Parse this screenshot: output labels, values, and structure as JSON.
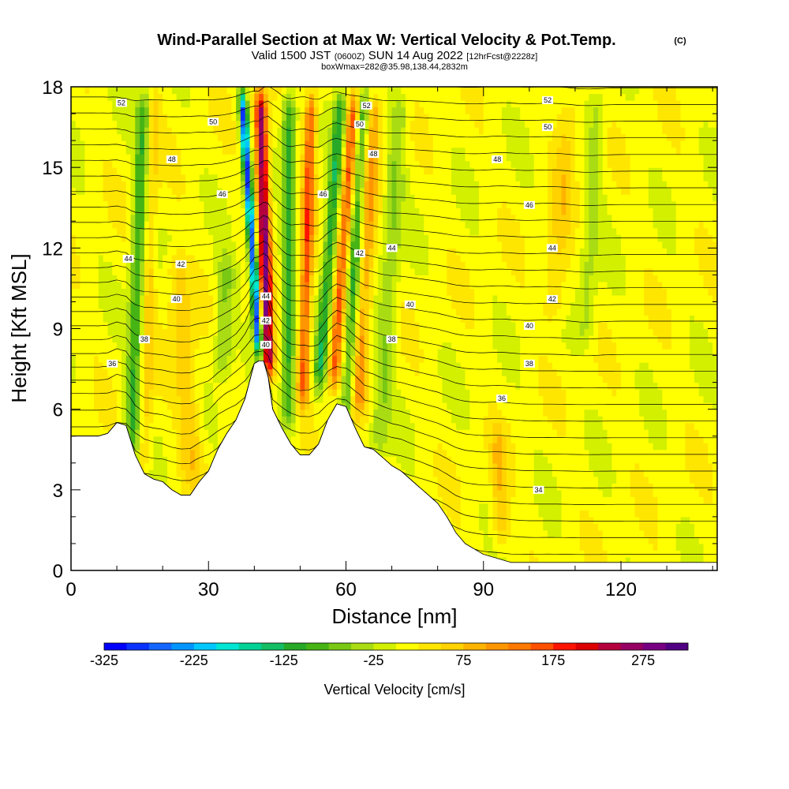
{
  "header": {
    "title": "Wind-Parallel Section at Max W: Vertical Velocity & Pot.Temp.",
    "copyright": "(C)",
    "valid_prefix": "Valid 1500 JST",
    "valid_utc": "(0600Z)",
    "valid_date": "SUN 14 Aug 2022",
    "forecast": "[12hrFcst@2228z]",
    "box_info": "boxWmax=282@35.98,138.44,2832m"
  },
  "chart_data": {
    "type": "heatmap",
    "xlabel": "Distance [nm]",
    "ylabel": "Height [Kft MSL]",
    "xlim": [
      0,
      141
    ],
    "ylim": [
      0,
      18
    ],
    "x_ticks": [
      0,
      30,
      60,
      90,
      120
    ],
    "y_ticks": [
      0,
      3,
      6,
      9,
      12,
      15,
      18
    ],
    "colorbar": {
      "label": "Vertical Velocity [cm/s]",
      "min": -325,
      "max": 325,
      "step": 25,
      "tick_values": [
        -325,
        -225,
        -125,
        -25,
        75,
        175,
        275
      ],
      "tick_labels": [
        "-325",
        "-225",
        "-125",
        "-25",
        "75",
        "175",
        "275"
      ],
      "colors": [
        "#0000ff",
        "#0a32ff",
        "#1466ff",
        "#0096ff",
        "#00c8ff",
        "#00e6d2",
        "#00d296",
        "#14be64",
        "#28aa28",
        "#46b414",
        "#78c814",
        "#aadc14",
        "#d2f000",
        "#ffff00",
        "#ffe600",
        "#ffd200",
        "#ffb400",
        "#ff9600",
        "#ff7800",
        "#ff5000",
        "#ff1400",
        "#dc0000",
        "#b4003c",
        "#960064",
        "#780082",
        "#500082"
      ]
    },
    "terrain_profile": {
      "x": [
        0,
        2,
        4,
        6,
        8,
        10,
        12,
        14,
        16,
        18,
        20,
        22,
        24,
        26,
        28,
        30,
        32,
        34,
        36,
        38,
        40,
        41,
        42,
        43,
        44,
        46,
        48,
        50,
        52,
        54,
        56,
        58,
        60,
        62,
        64,
        66,
        68,
        70,
        72,
        74,
        76,
        78,
        80,
        82,
        84,
        86,
        88,
        90,
        92,
        94,
        96,
        98,
        100,
        105,
        110,
        115,
        120,
        125,
        130,
        135,
        141
      ],
      "height_kft": [
        5,
        5,
        5,
        5,
        5.1,
        5.5,
        5.4,
        4.3,
        3.6,
        3.4,
        3.3,
        3.0,
        2.8,
        2.8,
        3.3,
        3.7,
        4.5,
        5.1,
        5.6,
        6.4,
        7.7,
        7.8,
        7.8,
        7.2,
        6.0,
        5.3,
        4.7,
        4.3,
        4.3,
        4.7,
        5.6,
        6.2,
        6.1,
        5.3,
        4.6,
        4.5,
        4.2,
        3.9,
        3.7,
        3.4,
        3.1,
        2.8,
        2.5,
        2.0,
        1.4,
        1.0,
        0.8,
        0.6,
        0.5,
        0.4,
        0.3,
        0.3,
        0.3,
        0.3,
        0.3,
        0.3,
        0.3,
        0.3,
        0.3,
        0.3,
        0.3
      ]
    },
    "vertical_velocity_features": [
      {
        "x": 13,
        "bottom_kft": 4.0,
        "top_kft": 18,
        "tilt_nm": 3,
        "half_width_nm": 1.6,
        "value_cms": -110
      },
      {
        "x": 16,
        "bottom_kft": 3.5,
        "top_kft": 18,
        "tilt_nm": 2,
        "half_width_nm": 1.4,
        "value_cms": 55
      },
      {
        "x": 27,
        "bottom_kft": 3.0,
        "top_kft": 12,
        "tilt_nm": -4,
        "half_width_nm": 2.5,
        "value_cms": 60
      },
      {
        "x": 33,
        "bottom_kft": 7.0,
        "top_kft": 12,
        "tilt_nm": 1,
        "half_width_nm": 2.0,
        "value_cms": -70
      },
      {
        "x": 41.2,
        "bottom_kft": 7.8,
        "top_kft": 18,
        "tilt_nm": -4,
        "half_width_nm": 0.9,
        "value_cms": -300
      },
      {
        "x": 43.2,
        "bottom_kft": 7.0,
        "top_kft": 18,
        "tilt_nm": -2,
        "half_width_nm": 1.3,
        "value_cms": 265
      },
      {
        "x": 47.5,
        "bottom_kft": 5.0,
        "top_kft": 18,
        "tilt_nm": 0,
        "half_width_nm": 1.4,
        "value_cms": -120
      },
      {
        "x": 50.5,
        "bottom_kft": 6.0,
        "top_kft": 18,
        "tilt_nm": 2,
        "half_width_nm": 1.3,
        "value_cms": 150
      },
      {
        "x": 54,
        "bottom_kft": 6.5,
        "top_kft": 18,
        "tilt_nm": 5,
        "half_width_nm": 1.4,
        "value_cms": -130
      },
      {
        "x": 57,
        "bottom_kft": 6.5,
        "top_kft": 18,
        "tilt_nm": 5,
        "half_width_nm": 1.3,
        "value_cms": 140
      },
      {
        "x": 60,
        "bottom_kft": 5.5,
        "top_kft": 18,
        "tilt_nm": 4,
        "half_width_nm": 1.3,
        "value_cms": -110
      },
      {
        "x": 62.5,
        "bottom_kft": 5.5,
        "top_kft": 18,
        "tilt_nm": 4,
        "half_width_nm": 1.6,
        "value_cms": 90
      },
      {
        "x": 67,
        "bottom_kft": 4.0,
        "top_kft": 18,
        "tilt_nm": 5,
        "half_width_nm": 2.0,
        "value_cms": -60
      },
      {
        "x": 94,
        "bottom_kft": 0.6,
        "top_kft": 5.5,
        "tilt_nm": -1,
        "half_width_nm": 1.8,
        "value_cms": 60
      },
      {
        "x": 105,
        "bottom_kft": 9.0,
        "top_kft": 18,
        "tilt_nm": 4,
        "half_width_nm": 2.5,
        "value_cms": 45
      },
      {
        "x": 112,
        "bottom_kft": 8.0,
        "top_kft": 18,
        "tilt_nm": 3,
        "half_width_nm": 2.0,
        "value_cms": -45
      }
    ],
    "pot_temp_labels": [
      {
        "x": 11,
        "y_kft": 17.4,
        "text": "52"
      },
      {
        "x": 31,
        "y_kft": 16.7,
        "text": "50"
      },
      {
        "x": 22,
        "y_kft": 15.3,
        "text": "48"
      },
      {
        "x": 33,
        "y_kft": 14.0,
        "text": "46"
      },
      {
        "x": 12.5,
        "y_kft": 11.6,
        "text": "44"
      },
      {
        "x": 24,
        "y_kft": 11.4,
        "text": "42"
      },
      {
        "x": 23,
        "y_kft": 10.1,
        "text": "40"
      },
      {
        "x": 16,
        "y_kft": 8.6,
        "text": "38"
      },
      {
        "x": 9,
        "y_kft": 7.7,
        "text": "36"
      },
      {
        "x": 42.5,
        "y_kft": 10.2,
        "text": "44"
      },
      {
        "x": 42.5,
        "y_kft": 9.3,
        "text": "42"
      },
      {
        "x": 42.5,
        "y_kft": 8.4,
        "text": "40"
      },
      {
        "x": 55,
        "y_kft": 14.0,
        "text": "46"
      },
      {
        "x": 64.5,
        "y_kft": 17.3,
        "text": "52"
      },
      {
        "x": 63,
        "y_kft": 16.6,
        "text": "50"
      },
      {
        "x": 66,
        "y_kft": 15.5,
        "text": "48"
      },
      {
        "x": 63,
        "y_kft": 11.8,
        "text": "42"
      },
      {
        "x": 70,
        "y_kft": 12.0,
        "text": "44"
      },
      {
        "x": 74,
        "y_kft": 9.9,
        "text": "40"
      },
      {
        "x": 70,
        "y_kft": 8.6,
        "text": "38"
      },
      {
        "x": 104,
        "y_kft": 17.5,
        "text": "52"
      },
      {
        "x": 104,
        "y_kft": 16.5,
        "text": "50"
      },
      {
        "x": 93,
        "y_kft": 15.3,
        "text": "48"
      },
      {
        "x": 100,
        "y_kft": 13.6,
        "text": "46"
      },
      {
        "x": 105,
        "y_kft": 12.0,
        "text": "44"
      },
      {
        "x": 105,
        "y_kft": 10.1,
        "text": "42"
      },
      {
        "x": 100,
        "y_kft": 9.1,
        "text": "40"
      },
      {
        "x": 100,
        "y_kft": 7.7,
        "text": "38"
      },
      {
        "x": 94,
        "y_kft": 6.4,
        "text": "36"
      },
      {
        "x": 102,
        "y_kft": 3.0,
        "text": "34"
      }
    ]
  }
}
